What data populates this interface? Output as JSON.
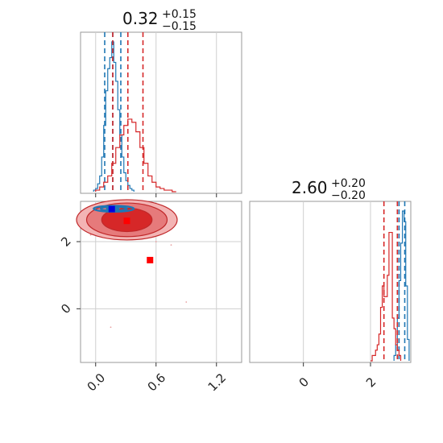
{
  "chart_data": [
    {
      "type": "histogram",
      "panel": "top-left",
      "title": {
        "value": "0.32",
        "plus": "+0.15",
        "minus": "−0.15"
      },
      "xlim": [
        -0.15,
        1.45
      ],
      "grid": true,
      "x_ticks": [
        0.0,
        0.6,
        1.2
      ],
      "series": [
        {
          "color": "#1f77b4",
          "bins": [
            -0.02,
            0.0,
            0.02,
            0.04,
            0.06,
            0.08,
            0.1,
            0.12,
            0.14,
            0.16,
            0.18,
            0.2,
            0.22,
            0.24,
            0.26,
            0.28,
            0.3,
            0.32,
            0.34,
            0.36,
            0.38
          ],
          "counts": [
            1,
            2,
            5,
            10,
            22,
            42,
            64,
            78,
            85,
            95,
            82,
            70,
            52,
            36,
            22,
            12,
            7,
            4,
            2,
            1
          ],
          "quantile_lines": [
            0.09,
            0.17,
            0.25
          ]
        },
        {
          "color": "#d62728",
          "bins": [
            0.0,
            0.04,
            0.08,
            0.12,
            0.16,
            0.2,
            0.24,
            0.28,
            0.32,
            0.36,
            0.4,
            0.44,
            0.48,
            0.52,
            0.56,
            0.6,
            0.64,
            0.68,
            0.72,
            0.76,
            0.8
          ],
          "counts": [
            1,
            3,
            6,
            10,
            18,
            28,
            36,
            42,
            46,
            44,
            38,
            28,
            18,
            10,
            6,
            3,
            2,
            1,
            1,
            0
          ],
          "quantile_lines": [
            0.17,
            0.32,
            0.47
          ]
        }
      ]
    },
    {
      "type": "histogram",
      "panel": "bottom-right",
      "title": {
        "value": "2.60",
        "plus": "+0.20",
        "minus": "−0.20"
      },
      "xlim": [
        -1.6,
        3.2
      ],
      "grid": true,
      "x_ticks": [
        0,
        2
      ],
      "series": [
        {
          "color": "#1f77b4",
          "bins": [
            2.7,
            2.75,
            2.8,
            2.85,
            2.9,
            2.95,
            3.0,
            3.05,
            3.1,
            3.15
          ],
          "counts": [
            1,
            3,
            8,
            15,
            22,
            28,
            26,
            14,
            4
          ],
          "quantile_lines": [
            2.85,
            3.02
          ]
        },
        {
          "color": "#d62728",
          "bins": [
            2.0,
            2.05,
            2.1,
            2.15,
            2.2,
            2.25,
            2.3,
            2.35,
            2.4,
            2.45,
            2.5,
            2.55,
            2.6,
            2.65,
            2.7,
            2.75,
            2.8,
            2.85,
            2.9
          ],
          "counts": [
            0,
            1,
            1,
            2,
            3,
            5,
            10,
            14,
            12,
            12,
            16,
            24,
            24,
            8,
            6,
            3,
            2,
            1
          ],
          "quantile_lines": [
            2.4,
            2.8
          ]
        }
      ]
    },
    {
      "type": "contour",
      "panel": "bottom-left",
      "xlim": [
        -0.15,
        1.45
      ],
      "ylim": [
        -1.6,
        3.2
      ],
      "grid": true,
      "x_ticks": [
        0.0,
        0.6,
        1.2
      ],
      "y_ticks": [
        0,
        2
      ],
      "red_levels": [
        {
          "cx": 0.31,
          "cy": 2.65,
          "rx": 0.25,
          "ry": 0.35,
          "fill": "#d62728",
          "opacity": 1.0
        },
        {
          "cx": 0.31,
          "cy": 2.65,
          "rx": 0.4,
          "ry": 0.5,
          "fill": "#e67a7b",
          "opacity": 1.0
        },
        {
          "cx": 0.31,
          "cy": 2.65,
          "rx": 0.5,
          "ry": 0.6,
          "fill": "#f3b4b4",
          "opacity": 1.0
        }
      ],
      "blue_levels": [
        {
          "cx": 0.18,
          "cy": 2.98,
          "rx": 0.2,
          "ry": 0.09
        },
        {
          "cx": 0.18,
          "cy": 2.98,
          "rx": 0.13,
          "ry": 0.06
        },
        {
          "cx": 0.17,
          "cy": 2.98,
          "rx": 0.06,
          "ry": 0.03
        }
      ],
      "red_points": [
        [
          0.31,
          2.62
        ],
        [
          0.54,
          1.45
        ]
      ],
      "blue_points": [
        [
          0.16,
          2.97
        ]
      ],
      "scatter_red_dots": [
        [
          0.9,
          0.2
        ],
        [
          0.15,
          -0.55
        ],
        [
          0.75,
          1.9
        ],
        [
          0.7,
          2.3
        ],
        [
          -0.05,
          2.2
        ],
        [
          0.6,
          2.0
        ]
      ]
    }
  ]
}
